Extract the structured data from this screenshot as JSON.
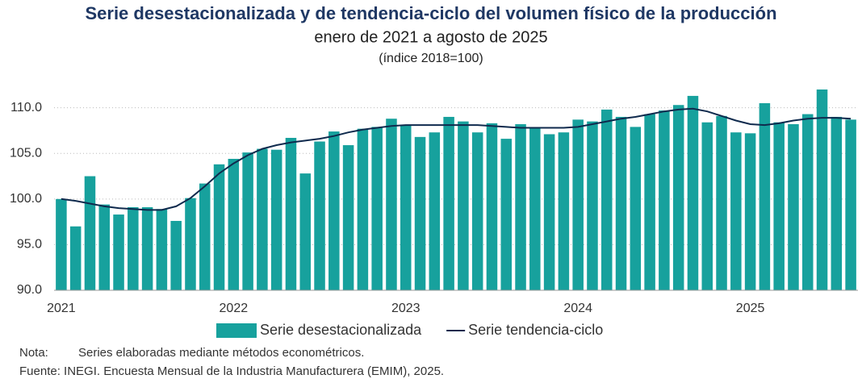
{
  "chart_data": {
    "type": "bar_line",
    "title": "Serie desestacionalizada y de tendencia-ciclo del volumen físico de la producción",
    "subtitle": "enero de 2021 a agosto de 2025",
    "subtitle2": "(índice 2018=100)",
    "categories": [
      "2021",
      null,
      null,
      null,
      null,
      null,
      null,
      null,
      null,
      null,
      null,
      null,
      "2022",
      null,
      null,
      null,
      null,
      null,
      null,
      null,
      null,
      null,
      null,
      null,
      "2023",
      null,
      null,
      null,
      null,
      null,
      null,
      null,
      null,
      null,
      null,
      null,
      "2024",
      null,
      null,
      null,
      null,
      null,
      null,
      null,
      null,
      null,
      null,
      null,
      "2025",
      null,
      null,
      null,
      null,
      null,
      null,
      null
    ],
    "series": [
      {
        "name": "Serie desestacionalizada",
        "color": "#17a19d",
        "kind": "bar",
        "values": [
          100.0,
          97.0,
          102.5,
          99.4,
          98.3,
          99.1,
          99.1,
          98.9,
          97.6,
          100.1,
          101.7,
          103.8,
          104.4,
          105.1,
          105.5,
          105.4,
          106.7,
          102.8,
          106.3,
          107.4,
          105.9,
          107.7,
          107.9,
          108.8,
          108.1,
          106.8,
          107.3,
          109.0,
          108.5,
          107.3,
          108.3,
          106.6,
          108.2,
          107.8,
          107.1,
          107.3,
          108.7,
          108.5,
          109.8,
          109.0,
          107.9,
          109.3,
          109.7,
          110.3,
          111.3,
          108.4,
          109.1,
          107.3,
          107.2,
          110.5,
          108.4,
          108.2,
          109.3,
          112.0,
          109.0,
          108.7
        ]
      },
      {
        "name": "Serie tendencia-ciclo",
        "color": "#0f2a4d",
        "kind": "line",
        "values": [
          100.0,
          99.8,
          99.5,
          99.2,
          99.0,
          98.9,
          98.8,
          98.8,
          99.2,
          100.1,
          101.4,
          102.8,
          103.9,
          104.8,
          105.5,
          105.9,
          106.2,
          106.4,
          106.6,
          106.9,
          107.3,
          107.6,
          107.8,
          108.0,
          108.1,
          108.1,
          108.1,
          108.1,
          108.1,
          108.1,
          108.0,
          107.9,
          107.8,
          107.8,
          107.8,
          107.8,
          107.9,
          108.2,
          108.5,
          108.8,
          109.0,
          109.3,
          109.6,
          109.8,
          109.9,
          109.6,
          109.1,
          108.6,
          108.2,
          108.1,
          108.3,
          108.6,
          108.8,
          108.9,
          108.9,
          108.8
        ]
      }
    ],
    "ylim": [
      90,
      112
    ],
    "yticks": [
      {
        "value": 90,
        "label": "90.0"
      },
      {
        "value": 95,
        "label": "95.0"
      },
      {
        "value": 100,
        "label": "100.0"
      },
      {
        "value": 105,
        "label": "105.0"
      },
      {
        "value": 110,
        "label": "110.0"
      }
    ],
    "grid": true,
    "legend": "bottom",
    "note_label": "Nota:",
    "note": "Series elaboradas mediante métodos econométricos.",
    "source": "Fuente: INEGI. Encuesta Mensual de la Industria Manufacturera (EMIM), 2025."
  }
}
